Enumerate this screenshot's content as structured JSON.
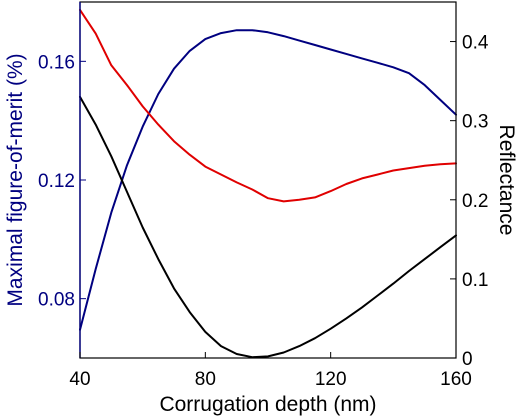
{
  "chart_data": {
    "type": "line",
    "xlabel": "Corrugation depth (nm)",
    "ylabel_left": "Maximal figure-of-merit (%)",
    "ylabel_right": "Reflectance",
    "xlim": [
      40,
      160
    ],
    "ylim_left": [
      0.06,
      0.18
    ],
    "ylim_right": [
      0,
      0.45
    ],
    "x_ticks": [
      "40",
      "80",
      "120",
      "160"
    ],
    "y_left_ticks": [
      "0.08",
      "0.12",
      "0.16"
    ],
    "y_right_ticks": [
      "0",
      "0.1",
      "0.2",
      "0.3",
      "0.4"
    ],
    "grid": false,
    "colors": {
      "left_axis": "#000080",
      "right_axis": "#000000"
    },
    "series": [
      {
        "axis": "left",
        "color": "#000080",
        "x": [
          40,
          45,
          50,
          55,
          60,
          65,
          70,
          75,
          80,
          85,
          90,
          95,
          100,
          105,
          110,
          115,
          120,
          125,
          130,
          135,
          140,
          145,
          150,
          155,
          160
        ],
        "y": [
          0.0695,
          0.09,
          0.109,
          0.125,
          0.138,
          0.149,
          0.1575,
          0.1635,
          0.1675,
          0.1695,
          0.1705,
          0.1705,
          0.1698,
          0.1685,
          0.167,
          0.1655,
          0.164,
          0.1625,
          0.161,
          0.1595,
          0.158,
          0.156,
          0.152,
          0.147,
          0.142
        ]
      },
      {
        "axis": "right",
        "color": "#e00000",
        "x": [
          40,
          45,
          50,
          55,
          60,
          65,
          70,
          75,
          80,
          85,
          90,
          95,
          100,
          105,
          110,
          115,
          120,
          125,
          130,
          135,
          140,
          145,
          150,
          155,
          160
        ],
        "y": [
          0.44,
          0.41,
          0.37,
          0.345,
          0.318,
          0.295,
          0.274,
          0.257,
          0.242,
          0.232,
          0.222,
          0.213,
          0.202,
          0.198,
          0.2,
          0.203,
          0.211,
          0.22,
          0.227,
          0.232,
          0.237,
          0.24,
          0.243,
          0.245,
          0.246
        ]
      },
      {
        "axis": "right",
        "color": "#000000",
        "x": [
          40,
          45,
          50,
          55,
          60,
          65,
          70,
          75,
          80,
          85,
          90,
          95,
          100,
          105,
          110,
          115,
          120,
          125,
          130,
          135,
          140,
          145,
          150,
          155,
          160
        ],
        "y": [
          0.33,
          0.295,
          0.255,
          0.21,
          0.165,
          0.125,
          0.088,
          0.058,
          0.033,
          0.015,
          0.005,
          0.001,
          0.002,
          0.007,
          0.015,
          0.025,
          0.037,
          0.05,
          0.064,
          0.079,
          0.094,
          0.11,
          0.125,
          0.14,
          0.155
        ]
      }
    ]
  }
}
